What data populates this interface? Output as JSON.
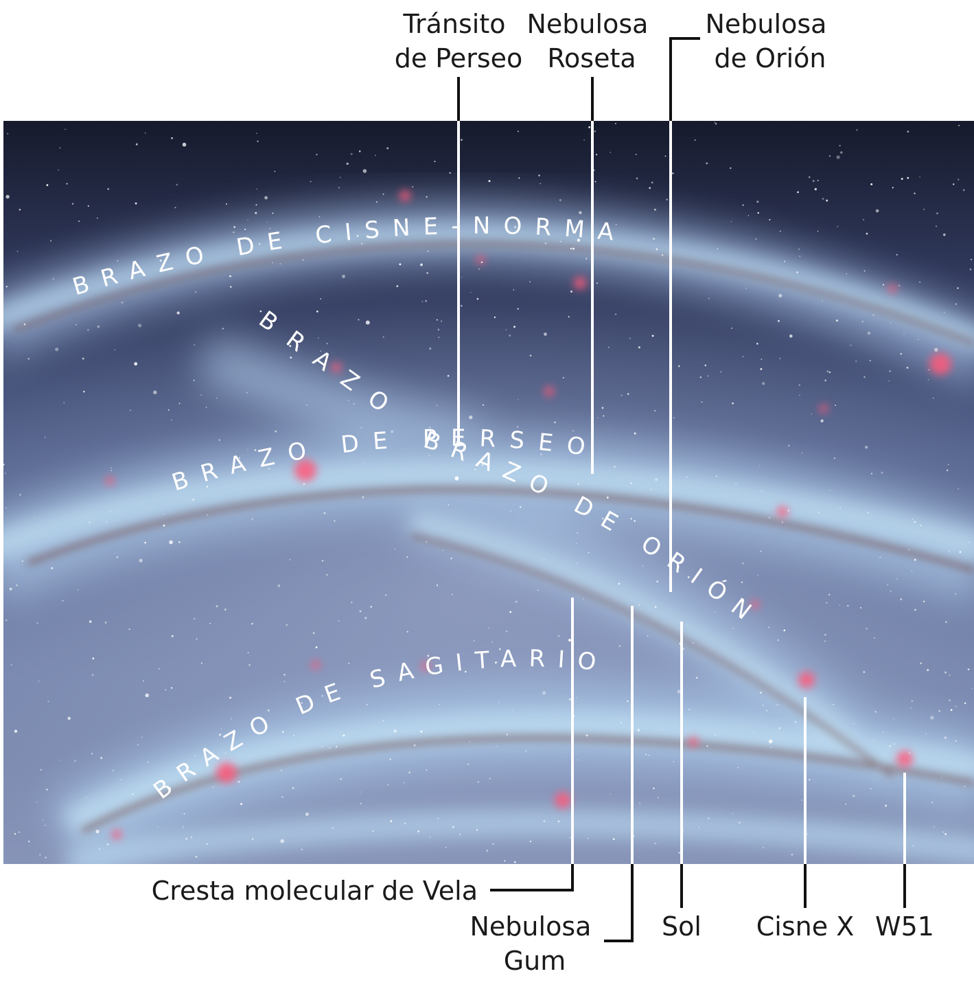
{
  "top_labels": {
    "perseus_transit": [
      "Tránsito",
      "de Perseo"
    ],
    "rosette_nebula": [
      "Nebulosa",
      "Roseta"
    ],
    "orion_nebula": [
      "Nebulosa",
      "de Orión"
    ]
  },
  "bottom_labels": {
    "vela_ridge": "Cresta molecular de Vela",
    "gum_nebula": [
      "Nebulosa",
      "Gum"
    ],
    "sun": "Sol",
    "cygnus_x": "Cisne X",
    "w51": "W51"
  },
  "arms": {
    "cygnus_norma": "BRAZO DE CISNE-NORMA",
    "perseus_spur": "BRAZO",
    "perseus": "BRAZO DE PERSEO",
    "orion": "BRAZO DE ORIÓN",
    "sagittarius": "BRAZO DE SAGITARIO"
  },
  "colors": {
    "space_top": "#161a2c",
    "space_mid": "#5a6a9a",
    "arm_blue": "#8fc4e8",
    "nebula_pink": "#ff5a7a",
    "dust_brown": "#7a3a2a",
    "line": "#111111",
    "label": "#1a1a1a"
  }
}
